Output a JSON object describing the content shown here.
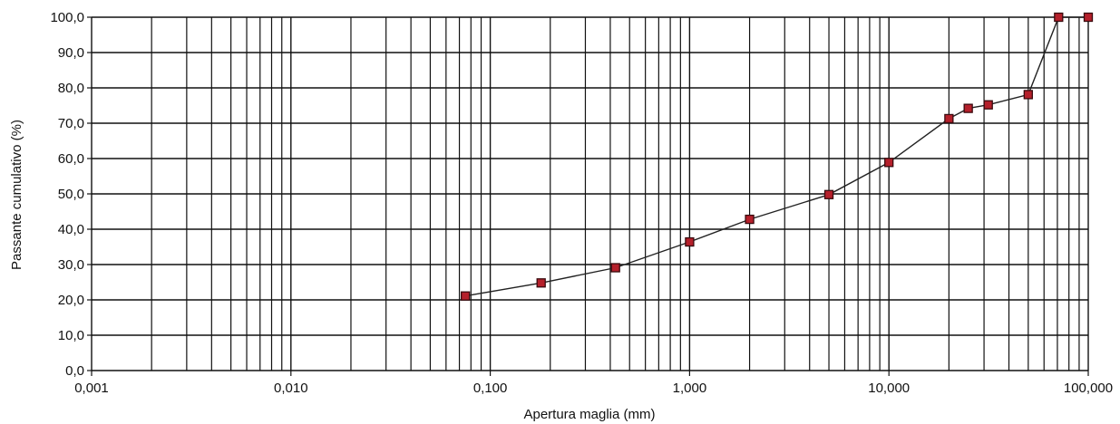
{
  "chart_data": {
    "type": "scatter",
    "title": "",
    "xlabel": "Apertura maglia (mm)",
    "ylabel": "Passante cumulativo (%)",
    "x_scale": "log",
    "xlim": [
      0.001,
      100
    ],
    "ylim": [
      0,
      100
    ],
    "x_ticks": [
      {
        "value": 0.001,
        "label": "0,001"
      },
      {
        "value": 0.01,
        "label": "0,010"
      },
      {
        "value": 0.1,
        "label": "0,100"
      },
      {
        "value": 1,
        "label": "1,000"
      },
      {
        "value": 10,
        "label": "10,000"
      },
      {
        "value": 100,
        "label": "100,000"
      }
    ],
    "y_ticks": [
      {
        "value": 0,
        "label": "0,0"
      },
      {
        "value": 10,
        "label": "10,0"
      },
      {
        "value": 20,
        "label": "20,0"
      },
      {
        "value": 30,
        "label": "30,0"
      },
      {
        "value": 40,
        "label": "40,0"
      },
      {
        "value": 50,
        "label": "50,0"
      },
      {
        "value": 60,
        "label": "60,0"
      },
      {
        "value": 70,
        "label": "70,0"
      },
      {
        "value": 80,
        "label": "80,0"
      },
      {
        "value": 90,
        "label": "90,0"
      },
      {
        "value": 100,
        "label": "100,0"
      }
    ],
    "grid": true,
    "series": [
      {
        "x": [
          0.075,
          0.18,
          0.425,
          1,
          2,
          5,
          10,
          20,
          25,
          31.5,
          50,
          71,
          100
        ],
        "y": [
          21.1,
          24.8,
          29.1,
          36.4,
          42.8,
          49.8,
          58.9,
          71.3,
          74.2,
          75.2,
          78.1,
          100,
          100
        ]
      }
    ],
    "line_color": "#222222",
    "marker_fill": "#b5202b",
    "marker_edge": "#3a0a0e"
  }
}
